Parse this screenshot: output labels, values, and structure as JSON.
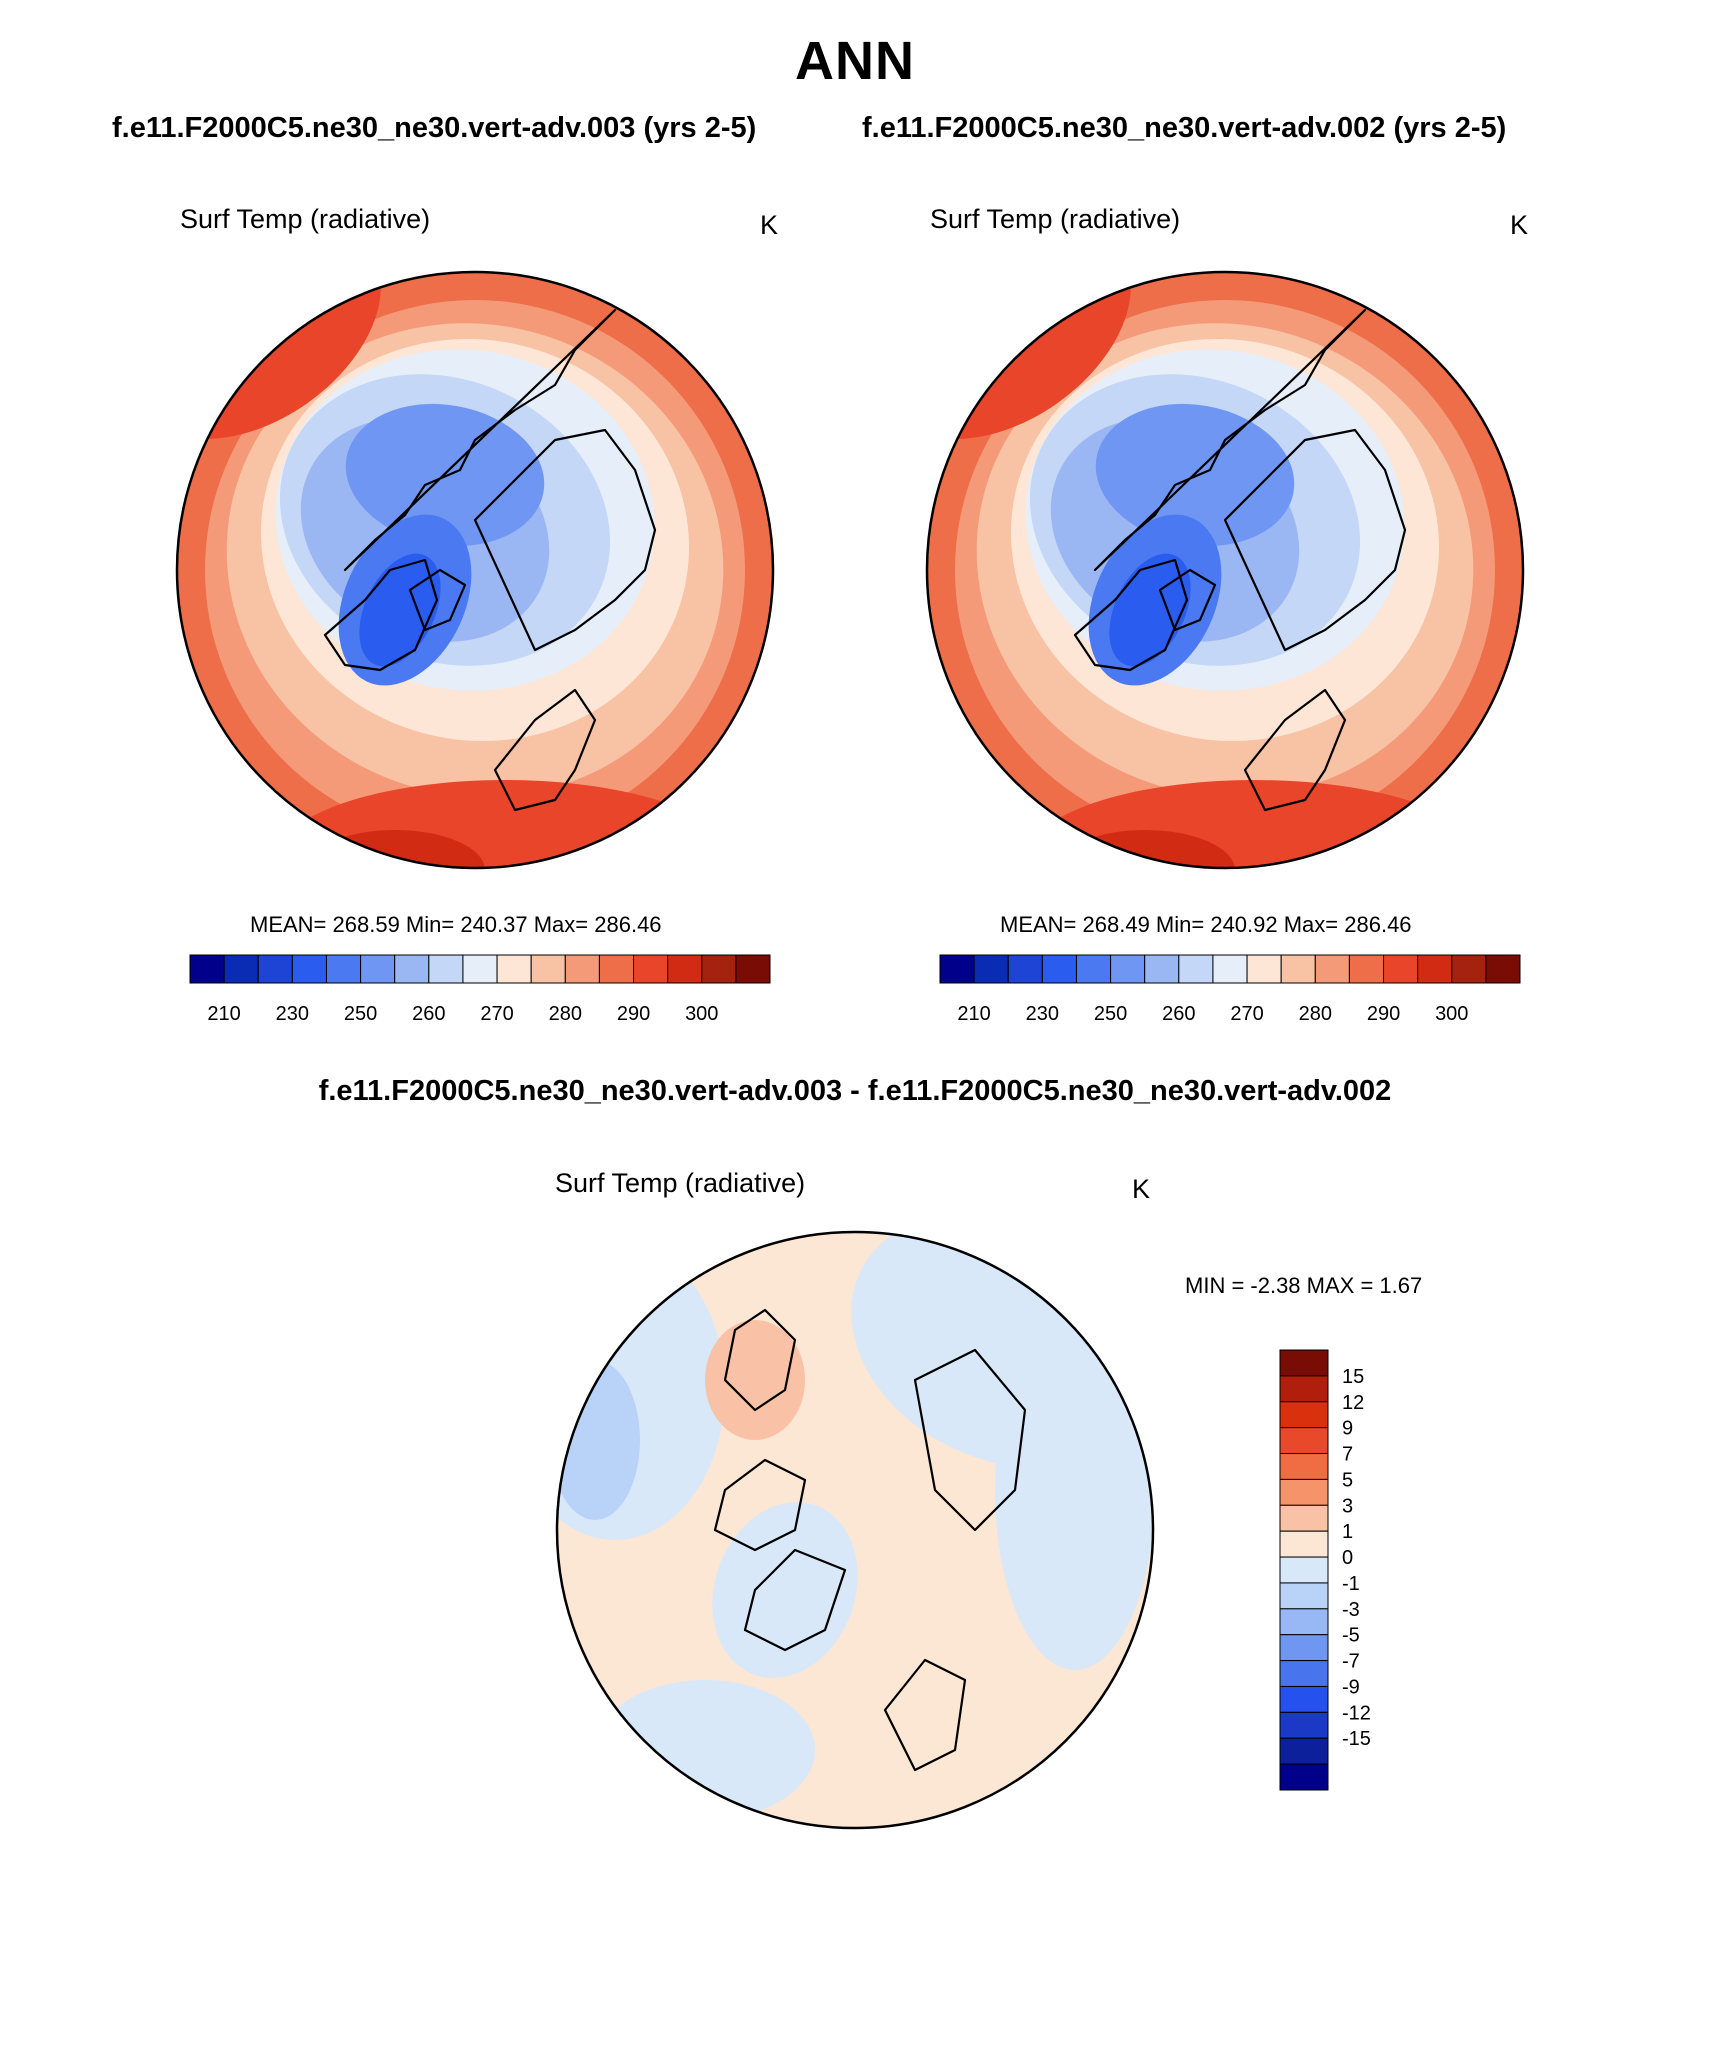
{
  "title": "ANN",
  "panels": {
    "case1": {
      "case_title": "f.e11.F2000C5.ne30_ne30.vert-adv.003 (yrs 2-5)",
      "variable": "Surf Temp (radiative)",
      "units": "K",
      "stats": "MEAN= 268.59  Min= 240.37  Max= 286.46"
    },
    "case2": {
      "case_title": "f.e11.F2000C5.ne30_ne30.vert-adv.002 (yrs 2-5)",
      "variable": "Surf Temp (radiative)",
      "units": "K",
      "stats": "MEAN= 268.49  Min= 240.92  Max= 286.46"
    },
    "diff": {
      "title": "f.e11.F2000C5.ne30_ne30.vert-adv.003 - f.e11.F2000C5.ne30_ne30.vert-adv.002",
      "variable": "Surf Temp (radiative)",
      "units": "K",
      "stats": "MIN =  -2.38 MAX =   1.67"
    }
  },
  "chart_data": [
    {
      "type": "heatmap",
      "projection": "north polar stereographic",
      "title": "f.e11.F2000C5.ne30_ne30.vert-adv.003 (yrs 2-5)",
      "variable": "Surf Temp (radiative)",
      "units": "K",
      "mean": 268.59,
      "min": 240.37,
      "max": 286.46,
      "colorbar_ticks": [
        210,
        230,
        250,
        260,
        270,
        280,
        290,
        300
      ],
      "colorbar_orientation": "horizontal"
    },
    {
      "type": "heatmap",
      "projection": "north polar stereographic",
      "title": "f.e11.F2000C5.ne30_ne30.vert-adv.002 (yrs 2-5)",
      "variable": "Surf Temp (radiative)",
      "units": "K",
      "mean": 268.49,
      "min": 240.92,
      "max": 286.46,
      "colorbar_ticks": [
        210,
        230,
        250,
        260,
        270,
        280,
        290,
        300
      ],
      "colorbar_orientation": "horizontal"
    },
    {
      "type": "heatmap",
      "projection": "north polar stereographic",
      "title": "f.e11.F2000C5.ne30_ne30.vert-adv.003 - f.e11.F2000C5.ne30_ne30.vert-adv.002",
      "variable": "Surf Temp (radiative)",
      "units": "K",
      "min": -2.38,
      "max": 1.67,
      "colorbar_ticks": [
        15,
        12,
        9,
        7,
        5,
        3,
        1,
        0,
        -1,
        -3,
        -5,
        -7,
        -9,
        -12,
        -15
      ],
      "colorbar_orientation": "vertical"
    }
  ],
  "colors": {
    "abs_scale": [
      "#00008b",
      "#0a2bb4",
      "#1e44d6",
      "#2b5cf0",
      "#4a79f2",
      "#7096f3",
      "#9ab7f4",
      "#c4d7f7",
      "#e6eefa",
      "#fde6d6",
      "#f8c2a4",
      "#f49a78",
      "#ee6e49",
      "#e8452a",
      "#d22b14",
      "#a5220f",
      "#7a0c06"
    ],
    "diff_scale": [
      "#7a0c06",
      "#b11e0b",
      "#d9300e",
      "#e8492a",
      "#f06d44",
      "#f5946a",
      "#f9c1a5",
      "#fce6d4",
      "#d8e8f8",
      "#b9d3f8",
      "#97b8f5",
      "#6f97f1",
      "#4874ee",
      "#2551ec",
      "#1a39c5",
      "#0b209a",
      "#00008b"
    ]
  }
}
